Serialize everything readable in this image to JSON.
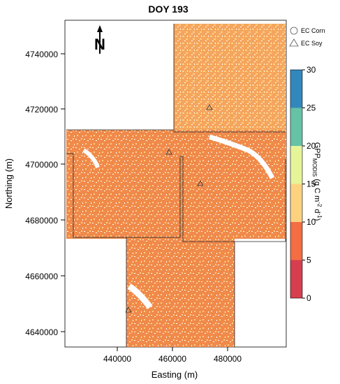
{
  "map": {
    "title": "DOY 193",
    "xlabel": "Easting (m)",
    "ylabel": "Northing (m)",
    "x_ticks": [
      "440000",
      "460000",
      "480000"
    ],
    "y_ticks": [
      "4640000",
      "4660000",
      "4680000",
      "4700000",
      "4720000",
      "4740000"
    ],
    "north_letter": "N",
    "legend": {
      "corn_label": "EC Corn",
      "soy_label": "EC Soy"
    },
    "colorbar": {
      "title_main": "GPP",
      "title_sub": "MODIS",
      "title_units_pre": " (g C m",
      "title_exp1": "-2",
      "title_mid": " d",
      "title_exp2": "-1",
      "title_post": ")",
      "tick_labels": [
        "0",
        "5",
        "10",
        "15",
        "20",
        "25",
        "30"
      ],
      "classes": [
        {
          "range": "0-5",
          "color": "#d53e4f"
        },
        {
          "range": "5-10",
          "color": "#f46d43"
        },
        {
          "range": "10-15",
          "color": "#fdd27f"
        },
        {
          "range": "15-20",
          "color": "#e6f598"
        },
        {
          "range": "20-25",
          "color": "#66c2a5"
        },
        {
          "range": "25-30",
          "color": "#3288bd"
        }
      ]
    },
    "dominant_class_color": "#f08a4b",
    "secondary_class_color": "#fdd27f"
  }
}
